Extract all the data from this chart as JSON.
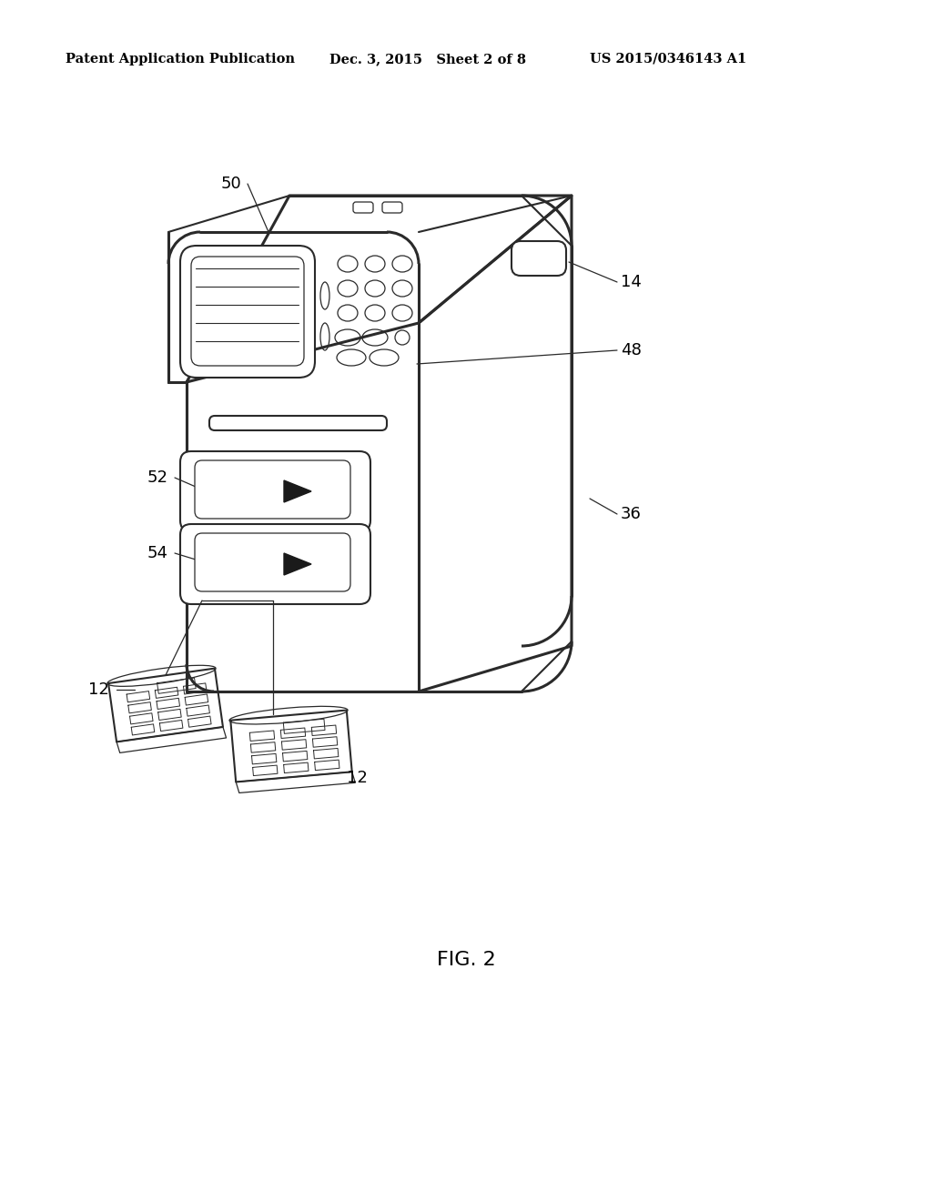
{
  "background_color": "#ffffff",
  "header_left": "Patent Application Publication",
  "header_mid": "Dec. 3, 2015   Sheet 2 of 8",
  "header_right": "US 2015/0346143 A1",
  "figure_label": "FIG. 2",
  "line_color": "#2a2a2a",
  "lw": 1.5,
  "lw_thin": 0.9,
  "lw_thick": 2.2
}
